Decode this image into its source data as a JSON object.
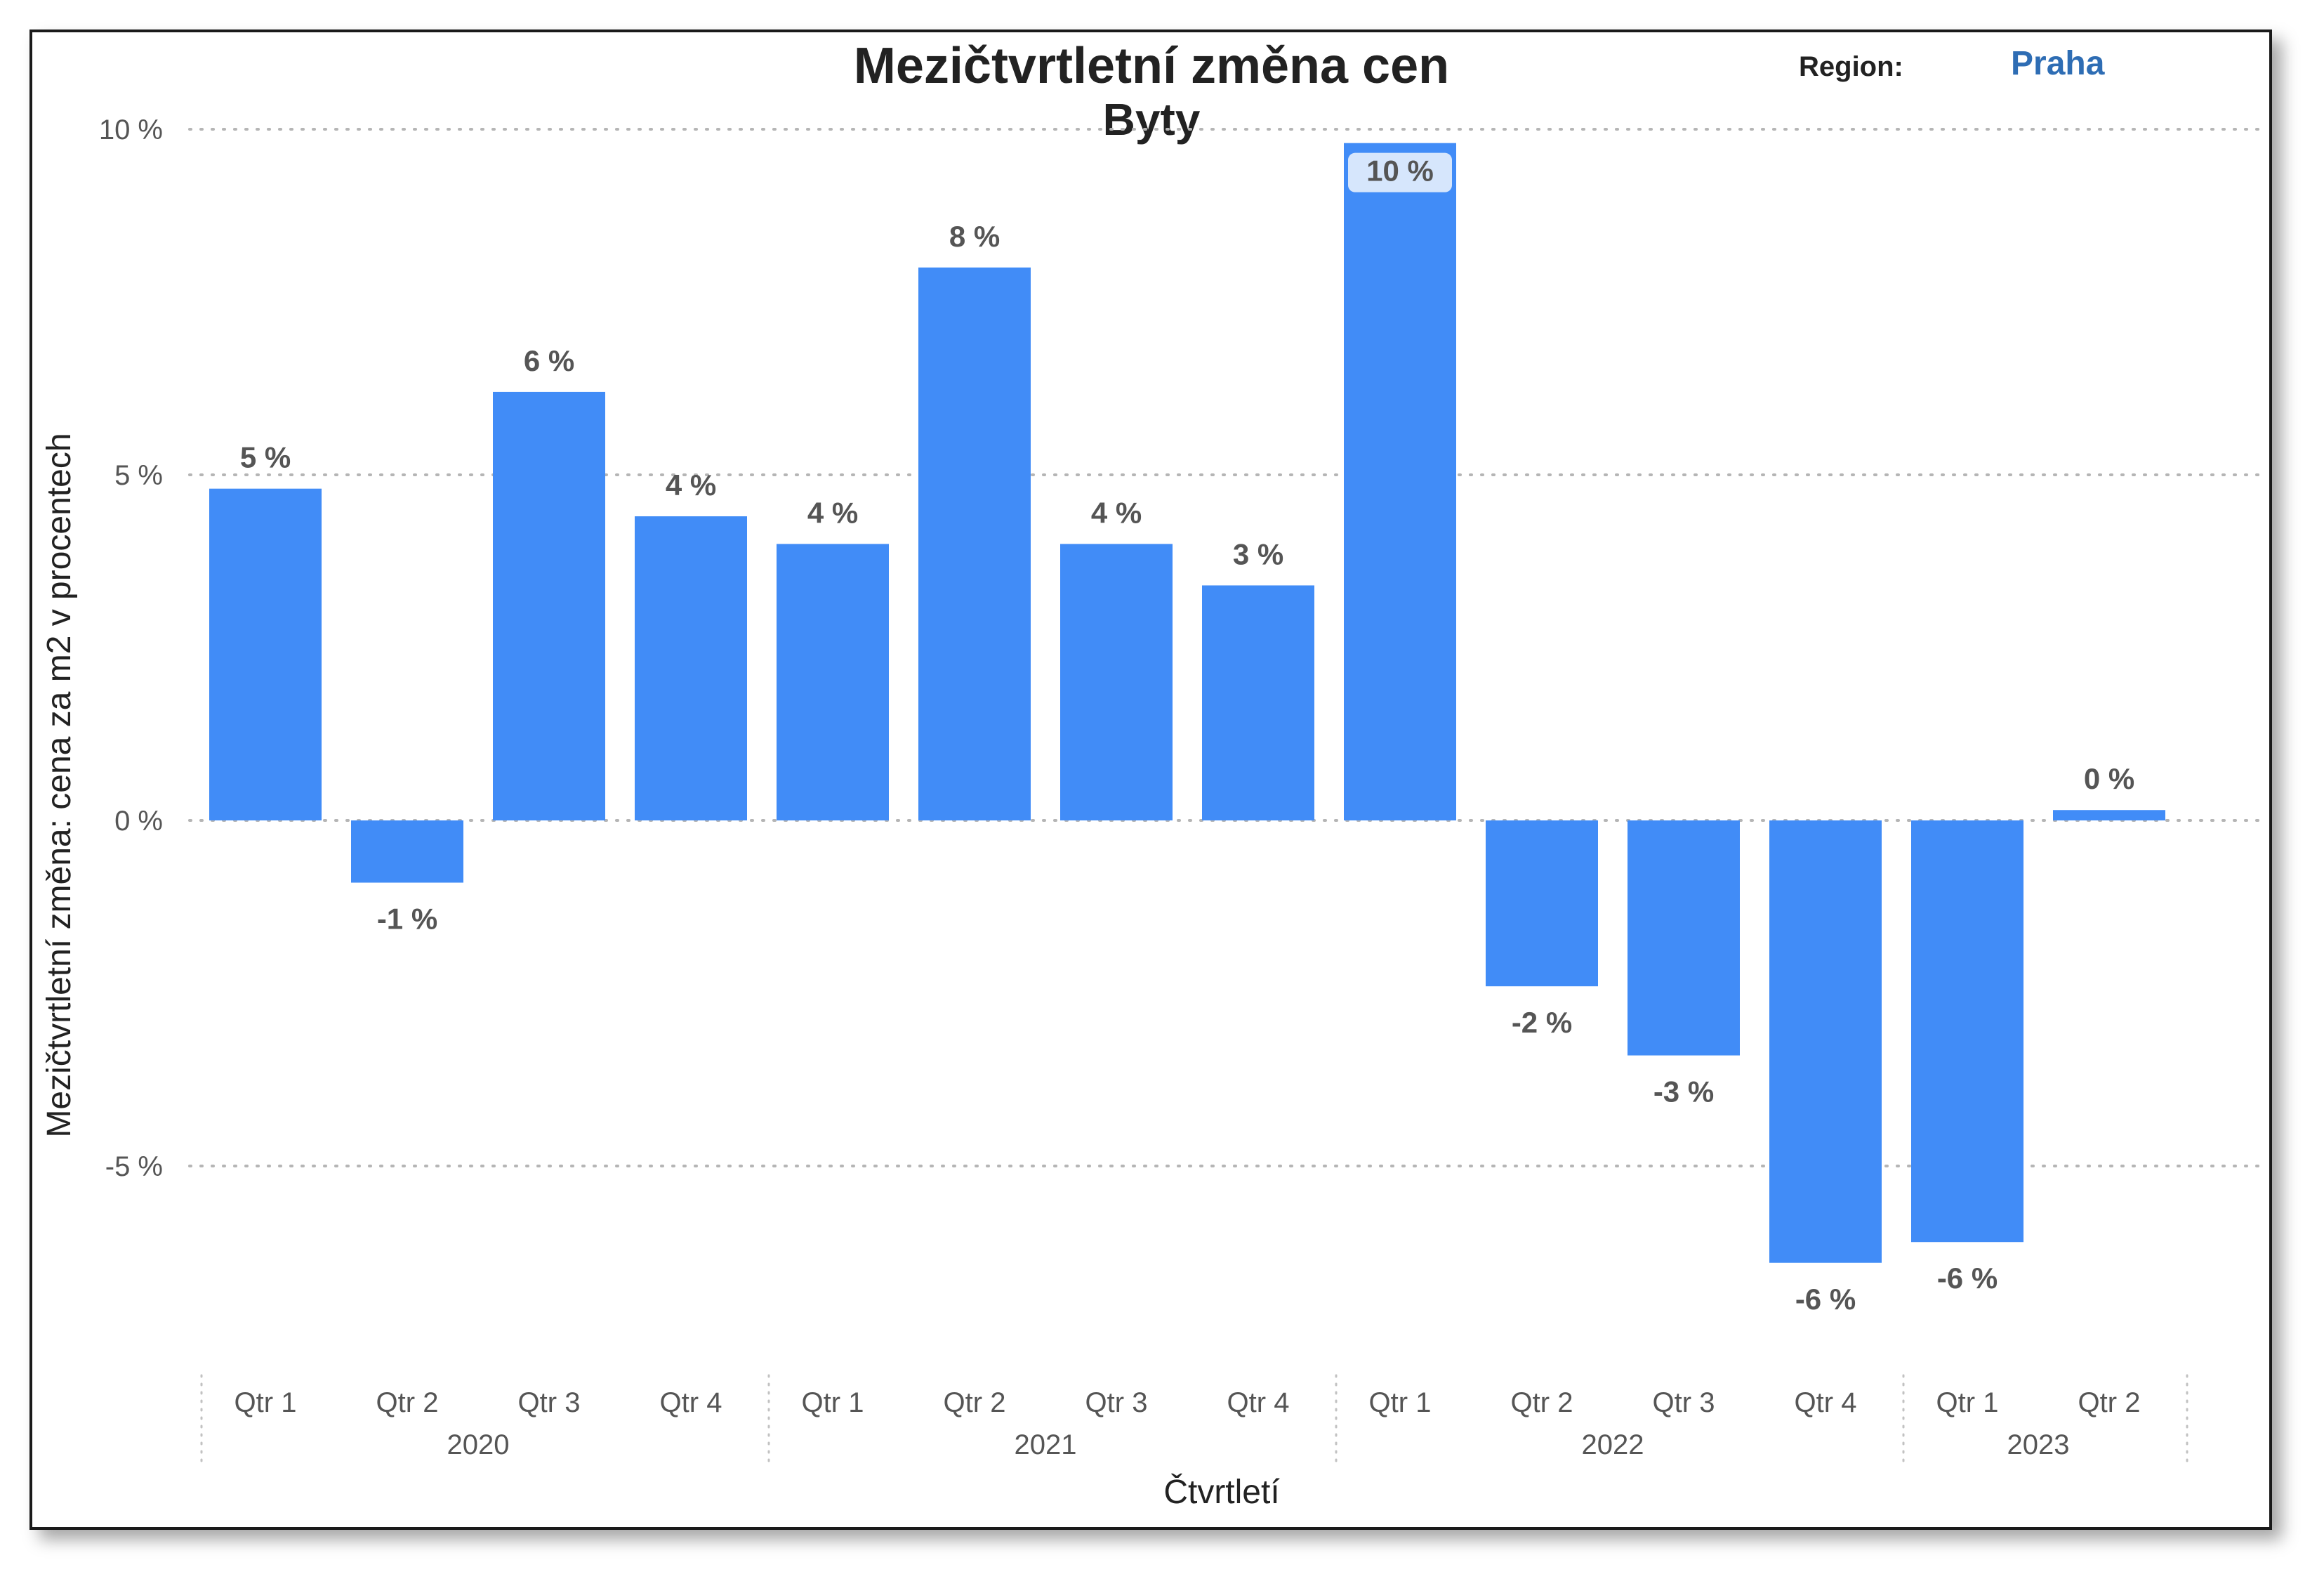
{
  "header": {
    "title": "Mezičtvrtletní změna cen",
    "subtitle": "Byty",
    "region_label": "Region:",
    "region_value": "Praha"
  },
  "colors": {
    "bar": "#418CF7",
    "region_value": "#2E6DB4",
    "highlight_label_bg": "#D6E6FC"
  },
  "chart_data": {
    "type": "bar",
    "title": "Mezičtvrtletní změna cen",
    "subtitle": "Byty",
    "xlabel": "Čtvrtletí",
    "ylabel": "Mezičtvrtletní změna: cena za m2 v procentech",
    "ylim": [
      -7.5,
      10
    ],
    "yticks": [
      10,
      5,
      0,
      -5
    ],
    "ytick_labels": [
      "10 %",
      "5 %",
      "0 %",
      "-5 %"
    ],
    "grid": true,
    "categories": [
      "Qtr 1",
      "Qtr 2",
      "Qtr 3",
      "Qtr 4",
      "Qtr 1",
      "Qtr 2",
      "Qtr 3",
      "Qtr 4",
      "Qtr 1",
      "Qtr 2",
      "Qtr 3",
      "Qtr 4",
      "Qtr 1",
      "Qtr 2"
    ],
    "groups": [
      {
        "label": "2020",
        "count": 4
      },
      {
        "label": "2021",
        "count": 4
      },
      {
        "label": "2022",
        "count": 4
      },
      {
        "label": "2023",
        "count": 2
      }
    ],
    "values": [
      4.8,
      -0.9,
      6.2,
      4.4,
      4.0,
      8.0,
      4.0,
      3.4,
      9.8,
      -2.4,
      -3.4,
      -6.4,
      -6.1,
      0.15
    ],
    "data_labels": [
      "5 %",
      "-1 %",
      "6 %",
      "4 %",
      "4 %",
      "8 %",
      "4 %",
      "3 %",
      "10 %",
      "-2 %",
      "-3 %",
      "-6 %",
      "-6 %",
      "0 %"
    ],
    "highlighted_index": 8
  }
}
